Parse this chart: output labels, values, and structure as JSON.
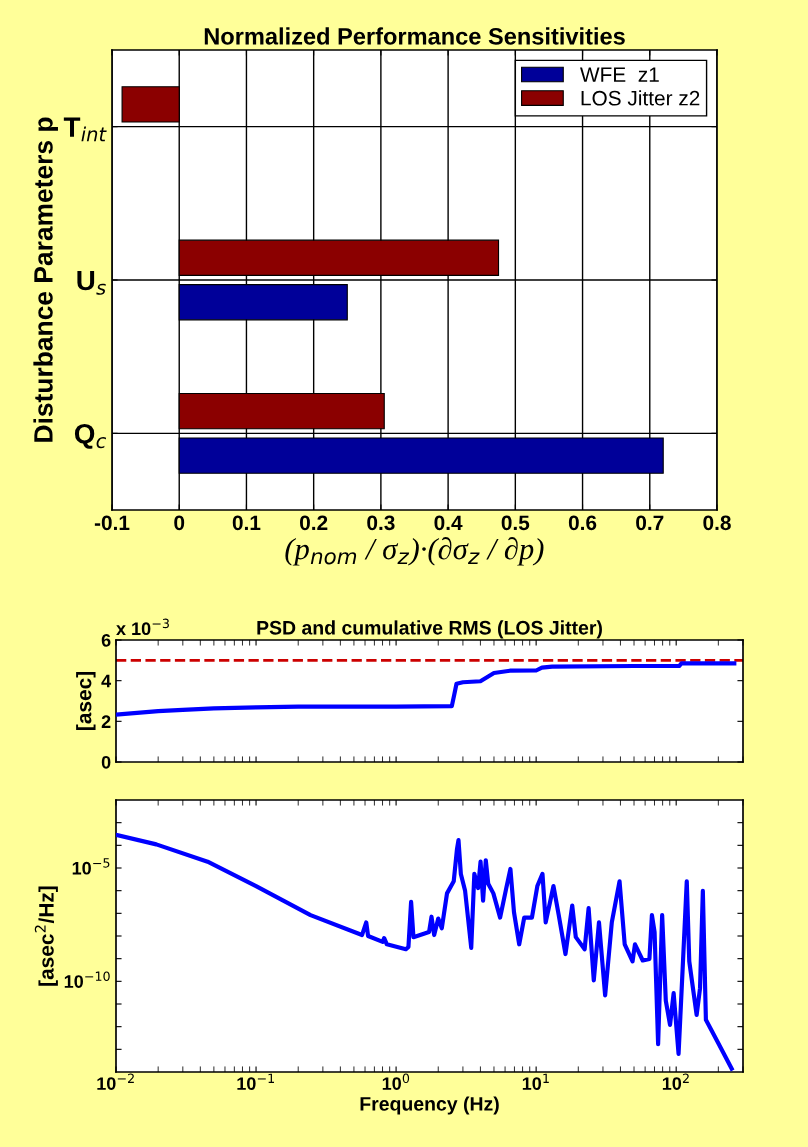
{
  "chart_data": [
    {
      "type": "bar",
      "orientation": "horizontal",
      "title": "Normalized Performance Sensitivities",
      "xlabel": "(p$_{nom}$ / σ$_{z}$)·(∂σ$_{z}$ / ∂p)",
      "ylabel": "Disturbance Parameters p",
      "categories": [
        "T$_{int}$",
        "U$_{s}$",
        "Q$_{c}$"
      ],
      "series": [
        {
          "name": "WFE  z1",
          "color": "#000099",
          "values": [
            null,
            0.25,
            0.72
          ]
        },
        {
          "name": "LOS Jitter z2",
          "color": "#8b0000",
          "values": [
            -0.085,
            0.475,
            0.305
          ]
        }
      ],
      "xlim": [
        -0.1,
        0.8
      ],
      "xticks": [
        -0.1,
        0,
        0.1,
        0.2,
        0.3,
        0.4,
        0.5,
        0.6,
        0.7,
        0.8
      ],
      "grid": true,
      "legend": "top right"
    },
    {
      "type": "line",
      "title": "PSD and cumulative RMS (LOS Jitter)",
      "ylabel": "[asec]",
      "annotations": [
        "x 10$^{−3}$"
      ],
      "log": "x",
      "x": [
        0.01,
        0.02,
        0.03,
        0.05,
        0.1,
        0.2,
        1,
        2.5,
        2.6,
        2.7,
        3,
        4,
        5,
        6.5,
        10,
        11,
        13,
        50,
        105,
        109,
        260
      ],
      "series": [
        {
          "color": "#0000ff",
          "values": [
            2.33,
            2.5,
            2.56,
            2.64,
            2.69,
            2.72,
            2.72,
            2.75,
            3.3,
            3.85,
            3.92,
            3.97,
            4.38,
            4.49,
            4.5,
            4.64,
            4.69,
            4.72,
            4.72,
            4.85,
            4.85
          ]
        }
      ],
      "ref_lines": [
        {
          "axis": "y",
          "value": 5,
          "color": "#cc0000",
          "line_style": "dashed"
        }
      ],
      "xlim": [
        0.01,
        300
      ],
      "xticks": [
        {
          "value": 0.01,
          "label": null
        },
        {
          "value": 0.1,
          "label": null
        },
        {
          "value": 1,
          "label": null
        },
        {
          "value": 10,
          "label": null
        },
        {
          "value": 100,
          "label": null
        }
      ],
      "ylim": [
        0,
        6
      ],
      "yticks": [
        0,
        2,
        4,
        6
      ],
      "tick_labels": "y",
      "grid": false
    },
    {
      "type": "line",
      "xlabel": "Frequency (Hz)",
      "ylabel": "[asec$^{2}$/Hz]",
      "log": "xy",
      "x": [
        0.01,
        0.0194,
        0.0451,
        0.1,
        0.245,
        0.571,
        0.612,
        0.631,
        0.802,
        0.822,
        0.859,
        1.175,
        1.225,
        1.28,
        1.33,
        1.72,
        1.79,
        1.87,
        2.0,
        2.12,
        2.31,
        2.58,
        2.72,
        2.79,
        2.9,
        3.11,
        3.44,
        3.62,
        3.85,
        4.01,
        4.18,
        4.37,
        4.55,
        4.95,
        5.53,
        6.12,
        6.55,
        6.95,
        7.57,
        8.22,
        9.33,
        10.2,
        11.1,
        11.7,
        13.3,
        14.5,
        16.2,
        18.1,
        19.2,
        22.2,
        23.7,
        25.8,
        28.1,
        31.1,
        34.7,
        39.4,
        42.9,
        48.8,
        50.8,
        57.7,
        64.4,
        67.1,
        70.1,
        74.3,
        79.4,
        84.3,
        90.4,
        95.9,
        104,
        111,
        119,
        124,
        140,
        148,
        155,
        163,
        197,
        249
      ],
      "series": [
        {
          "color": "#0000ff",
          "values": [
            0.00029,
            0.00011,
            1.9e-05,
            1.6e-06,
            8.3e-08,
            1.1e-08,
            4e-08,
            1e-08,
            5.5e-09,
            8.1e-09,
            4.3e-09,
            2.6e-09,
            3.3e-09,
            3.2e-07,
            8.9e-09,
            1.5e-08,
            7.1e-08,
            1.1e-08,
            5.9e-08,
            2.2e-08,
            7.6e-07,
            2.6e-06,
            6.6e-05,
            0.00017,
            5.5e-06,
            9.8e-07,
            3e-09,
            5.5e-06,
            1.3e-06,
            1.9e-05,
            3.6e-07,
            2.2e-05,
            2e-06,
            7.6e-07,
            6.5e-08,
            1.3e-06,
            9.1e-06,
            1.1e-07,
            4.3e-09,
            6.5e-08,
            6.5e-08,
            1.6e-06,
            5.5e-06,
            4e-08,
            1.6e-06,
            8.3e-08,
            1.6e-09,
            2.2e-07,
            8.9e-09,
            2.6e-09,
            1.7e-07,
            1.1e-10,
            4e-08,
            2.4e-11,
            4e-08,
            2.6e-06,
            4.3e-09,
            7.6e-10,
            4.3e-09,
            8.3e-10,
            9.8e-10,
            8.3e-08,
            1.5e-08,
            1.7e-13,
            8.3e-08,
            1.4e-11,
            1.2e-12,
            3e-11,
            6.3e-14,
            2.8e-10,
            2.6e-06,
            7.6e-10,
            3.3e-12,
            5e-11,
            9.8e-07,
            2e-12,
            2.2e-13,
            1.4e-14
          ]
        }
      ],
      "xlim": [
        0.01,
        300
      ],
      "xticks": [
        {
          "value": 0.01,
          "label": "10$^{−2}$"
        },
        {
          "value": 0.1,
          "label": "10$^{−1}$"
        },
        {
          "value": 1,
          "label": "10$^{0}$"
        },
        {
          "value": 10,
          "label": "10$^{1}$"
        },
        {
          "value": 100,
          "label": "10$^{2}$"
        }
      ],
      "ylim": [
        1e-14,
        0.01
      ],
      "yticks": [
        {
          "value": 1e-13,
          "label": null
        },
        {
          "value": 1e-12,
          "label": null
        },
        {
          "value": 1e-11,
          "label": null
        },
        {
          "value": 1e-10,
          "label": "10$^{−10}$"
        },
        {
          "value": 1e-09,
          "label": null
        },
        {
          "value": 1e-08,
          "label": null
        },
        {
          "value": 1e-07,
          "label": null
        },
        {
          "value": 1e-06,
          "label": null
        },
        {
          "value": 1e-05,
          "label": "10$^{−5}$"
        },
        {
          "value": 0.0001,
          "label": null
        },
        {
          "value": 0.001,
          "label": null
        }
      ],
      "grid": false
    }
  ]
}
